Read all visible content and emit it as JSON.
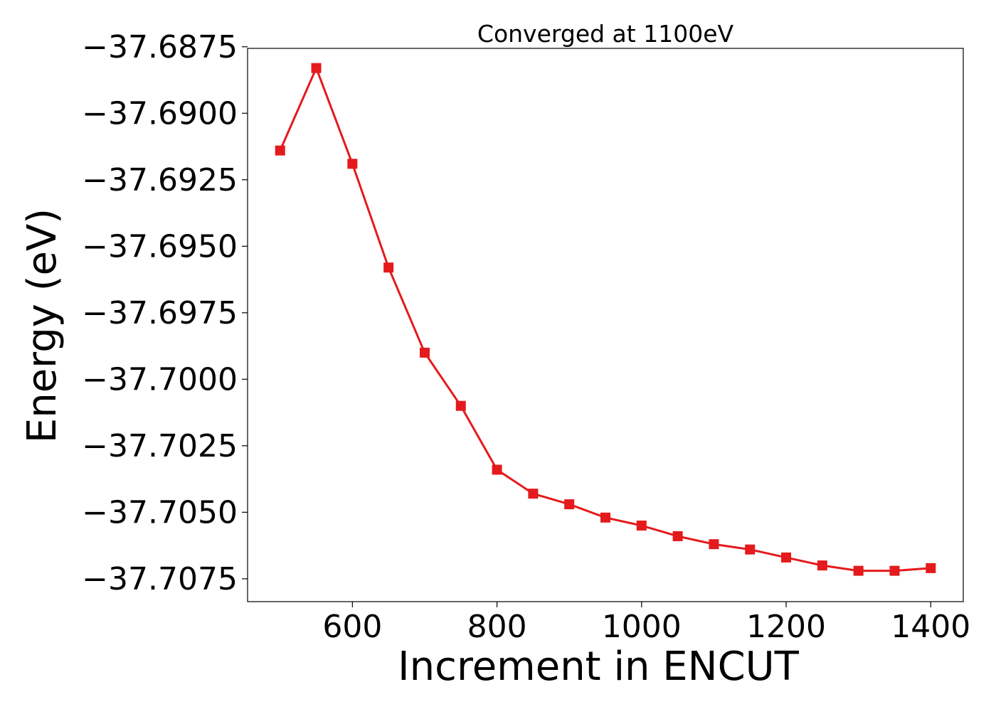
{
  "chart_data": {
    "type": "line",
    "title": "Converged at 1100eV",
    "xlabel": "Increment in ENCUT",
    "ylabel": "Energy (eV)",
    "xlim": [
      455,
      1445
    ],
    "ylim": [
      -37.70836,
      -37.68756
    ],
    "x_ticks": [
      600,
      800,
      1000,
      1200,
      1400
    ],
    "x_tick_labels": [
      "600",
      "800",
      "1000",
      "1200",
      "1400"
    ],
    "y_ticks": [
      -37.6875,
      -37.69,
      -37.6925,
      -37.695,
      -37.6975,
      -37.7,
      -37.7025,
      -37.705,
      -37.7075
    ],
    "y_tick_labels": [
      "−37.6875",
      "−37.6900",
      "−37.6925",
      "−37.6950",
      "−37.6975",
      "−37.7000",
      "−37.7025",
      "−37.7050",
      "−37.7075"
    ],
    "grid": false,
    "marker": "square",
    "color": "#e41a1c",
    "series": [
      {
        "x": [
          500,
          550,
          600,
          650,
          700,
          750,
          800,
          850,
          900,
          950,
          1000,
          1050,
          1100,
          1150,
          1200,
          1250,
          1300,
          1350,
          1400
        ],
        "y": [
          -37.6914,
          -37.6883,
          -37.6919,
          -37.6958,
          -37.699,
          -37.701,
          -37.7034,
          -37.7043,
          -37.7047,
          -37.7052,
          -37.7055,
          -37.7059,
          -37.7062,
          -37.7064,
          -37.7067,
          -37.707,
          -37.7072,
          -37.7072,
          -37.7071
        ]
      }
    ]
  }
}
